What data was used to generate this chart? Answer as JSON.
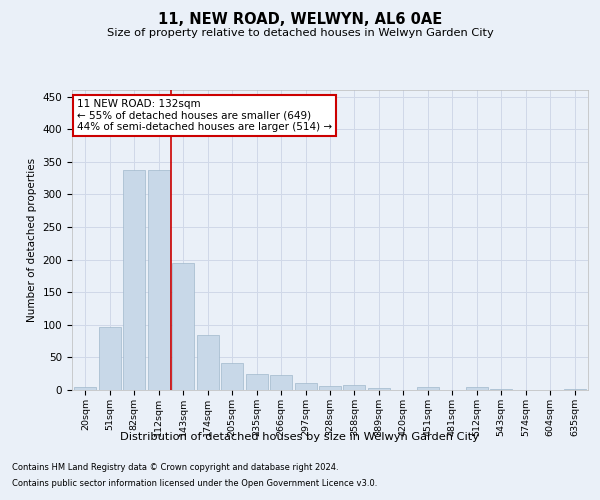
{
  "title": "11, NEW ROAD, WELWYN, AL6 0AE",
  "subtitle": "Size of property relative to detached houses in Welwyn Garden City",
  "xlabel": "Distribution of detached houses by size in Welwyn Garden City",
  "ylabel": "Number of detached properties",
  "footnote1": "Contains HM Land Registry data © Crown copyright and database right 2024.",
  "footnote2": "Contains public sector information licensed under the Open Government Licence v3.0.",
  "bar_labels": [
    "20sqm",
    "51sqm",
    "82sqm",
    "112sqm",
    "143sqm",
    "174sqm",
    "205sqm",
    "235sqm",
    "266sqm",
    "297sqm",
    "328sqm",
    "358sqm",
    "389sqm",
    "420sqm",
    "451sqm",
    "481sqm",
    "512sqm",
    "543sqm",
    "574sqm",
    "604sqm",
    "635sqm"
  ],
  "bar_values": [
    5,
    97,
    338,
    337,
    195,
    85,
    42,
    25,
    23,
    10,
    6,
    7,
    3,
    0,
    5,
    0,
    5,
    1,
    0,
    0,
    2
  ],
  "bar_color": "#c8d8e8",
  "bar_edge_color": "#a0b8cc",
  "grid_color": "#d0d8e8",
  "bg_color": "#eaf0f8",
  "vline_x": 3.5,
  "vline_color": "#cc0000",
  "annotation_line1": "11 NEW ROAD: 132sqm",
  "annotation_line2": "← 55% of detached houses are smaller (649)",
  "annotation_line3": "44% of semi-detached houses are larger (514) →",
  "annotation_box_color": "#ffffff",
  "annotation_box_edge": "#cc0000",
  "ylim": [
    0,
    460
  ],
  "yticks": [
    0,
    50,
    100,
    150,
    200,
    250,
    300,
    350,
    400,
    450
  ]
}
